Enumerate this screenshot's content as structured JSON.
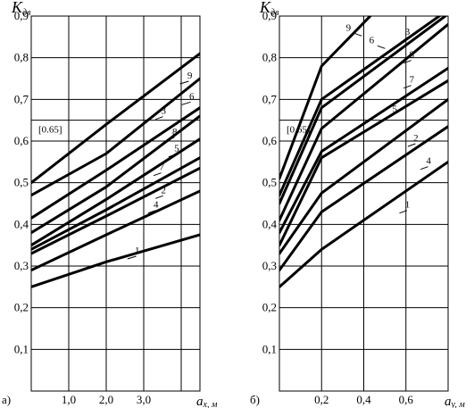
{
  "chart_data": [
    {
      "type": "line",
      "panel_label": "а)",
      "y_title": {
        "main": "K",
        "sub": "дв"
      },
      "x_title": {
        "main": "a",
        "sub": "x, м"
      },
      "xlim": [
        0,
        4.5
      ],
      "ylim": [
        0,
        0.9
      ],
      "x_ticks": [
        1.0,
        2.0,
        3.0,
        4.0
      ],
      "x_tick_labels": [
        "1,0",
        "2,0",
        "3,0",
        ""
      ],
      "y_ticks": [
        0.1,
        0.2,
        0.3,
        0.4,
        0.5,
        0.6,
        0.7,
        0.8,
        0.9
      ],
      "y_tick_labels": [
        "0,1",
        "0,2",
        "0,3",
        "0,4",
        "0,5",
        "0,6",
        "0,7",
        "0,8",
        "0,9"
      ],
      "reference": {
        "y": 0.65,
        "label": "[0.65]"
      },
      "grid": true,
      "series": [
        {
          "name": "9",
          "x": [
            0,
            2.0,
            4.5
          ],
          "y": [
            0.5,
            0.64,
            0.81
          ]
        },
        {
          "name": "6",
          "x": [
            0,
            2.0,
            4.5
          ],
          "y": [
            0.47,
            0.57,
            0.75
          ]
        },
        {
          "name": "3",
          "x": [
            0,
            2.0,
            4.5
          ],
          "y": [
            0.415,
            0.53,
            0.68
          ]
        },
        {
          "name": "8",
          "x": [
            0,
            2.0,
            4.5
          ],
          "y": [
            0.38,
            0.49,
            0.66
          ]
        },
        {
          "name": "5",
          "x": [
            0,
            2.0,
            4.5
          ],
          "y": [
            0.35,
            0.46,
            0.605
          ]
        },
        {
          "name": "7",
          "x": [
            0,
            2.0,
            4.5
          ],
          "y": [
            0.34,
            0.435,
            0.56
          ]
        },
        {
          "name": "2",
          "x": [
            0,
            2.0,
            4.5
          ],
          "y": [
            0.33,
            0.42,
            0.535
          ]
        },
        {
          "name": "4",
          "x": [
            0,
            2.0,
            4.5
          ],
          "y": [
            0.29,
            0.375,
            0.48
          ]
        },
        {
          "name": "1",
          "x": [
            0,
            2.0,
            4.5
          ],
          "y": [
            0.25,
            0.31,
            0.375
          ]
        }
      ],
      "labels": {
        "9": [
          4.3,
          0.75
        ],
        "6": [
          4.35,
          0.7
        ],
        "3": [
          3.6,
          0.665
        ],
        "8": [
          3.9,
          0.615
        ],
        "5": [
          3.95,
          0.575
        ],
        "7": [
          3.55,
          0.53
        ],
        "2": [
          3.6,
          0.475
        ],
        "4": [
          3.4,
          0.44
        ],
        "1": [
          2.9,
          0.33
        ]
      }
    },
    {
      "type": "line",
      "panel_label": "б)",
      "y_title": {
        "main": "K",
        "sub": "дв"
      },
      "x_title": {
        "main": "a",
        "sub": "y, м"
      },
      "xlim": [
        0,
        0.8
      ],
      "ylim": [
        0,
        0.9
      ],
      "x_ticks": [
        0.2,
        0.4,
        0.6
      ],
      "x_tick_labels": [
        "0,2",
        "0,4",
        "0,6"
      ],
      "y_ticks": [
        0.1,
        0.2,
        0.3,
        0.4,
        0.5,
        0.6,
        0.7,
        0.8,
        0.9
      ],
      "y_tick_labels": [
        "0,1",
        "0,2",
        "0,3",
        "0,4",
        "0,5",
        "0,6",
        "0,7",
        "0,8",
        "0,9"
      ],
      "reference": {
        "y": 0.65,
        "label": "[0.65]"
      },
      "grid": true,
      "series": [
        {
          "name": "9",
          "x": [
            0,
            0.2,
            0.45
          ],
          "y": [
            0.51,
            0.78,
            0.91
          ]
        },
        {
          "name": "3",
          "x": [
            0,
            0.2,
            0.8
          ],
          "y": [
            0.47,
            0.7,
            0.915
          ]
        },
        {
          "name": "6",
          "x": [
            0,
            0.2,
            0.8
          ],
          "y": [
            0.45,
            0.68,
            0.905
          ]
        },
        {
          "name": "8",
          "x": [
            0,
            0.2,
            0.8
          ],
          "y": [
            0.41,
            0.63,
            0.88
          ]
        },
        {
          "name": "7",
          "x": [
            0,
            0.2,
            0.8
          ],
          "y": [
            0.38,
            0.575,
            0.775
          ]
        },
        {
          "name": "5",
          "x": [
            0,
            0.2,
            0.8
          ],
          "y": [
            0.35,
            0.56,
            0.745
          ]
        },
        {
          "name": "2",
          "x": [
            0,
            0.2,
            0.8
          ],
          "y": [
            0.33,
            0.475,
            0.7
          ]
        },
        {
          "name": "4",
          "x": [
            0,
            0.2,
            0.8
          ],
          "y": [
            0.29,
            0.43,
            0.635
          ]
        },
        {
          "name": "1",
          "x": [
            0,
            0.2,
            0.8
          ],
          "y": [
            0.25,
            0.34,
            0.55
          ]
        }
      ],
      "labels": {
        "9": [
          0.34,
          0.865
        ],
        "6": [
          0.45,
          0.835
        ],
        "3": [
          0.62,
          0.855
        ],
        "8": [
          0.64,
          0.8
        ],
        "7": [
          0.64,
          0.74
        ],
        "5": [
          0.56,
          0.67
        ],
        "2": [
          0.66,
          0.6
        ],
        "4": [
          0.72,
          0.545
        ],
        "1": [
          0.62,
          0.44
        ]
      }
    }
  ]
}
